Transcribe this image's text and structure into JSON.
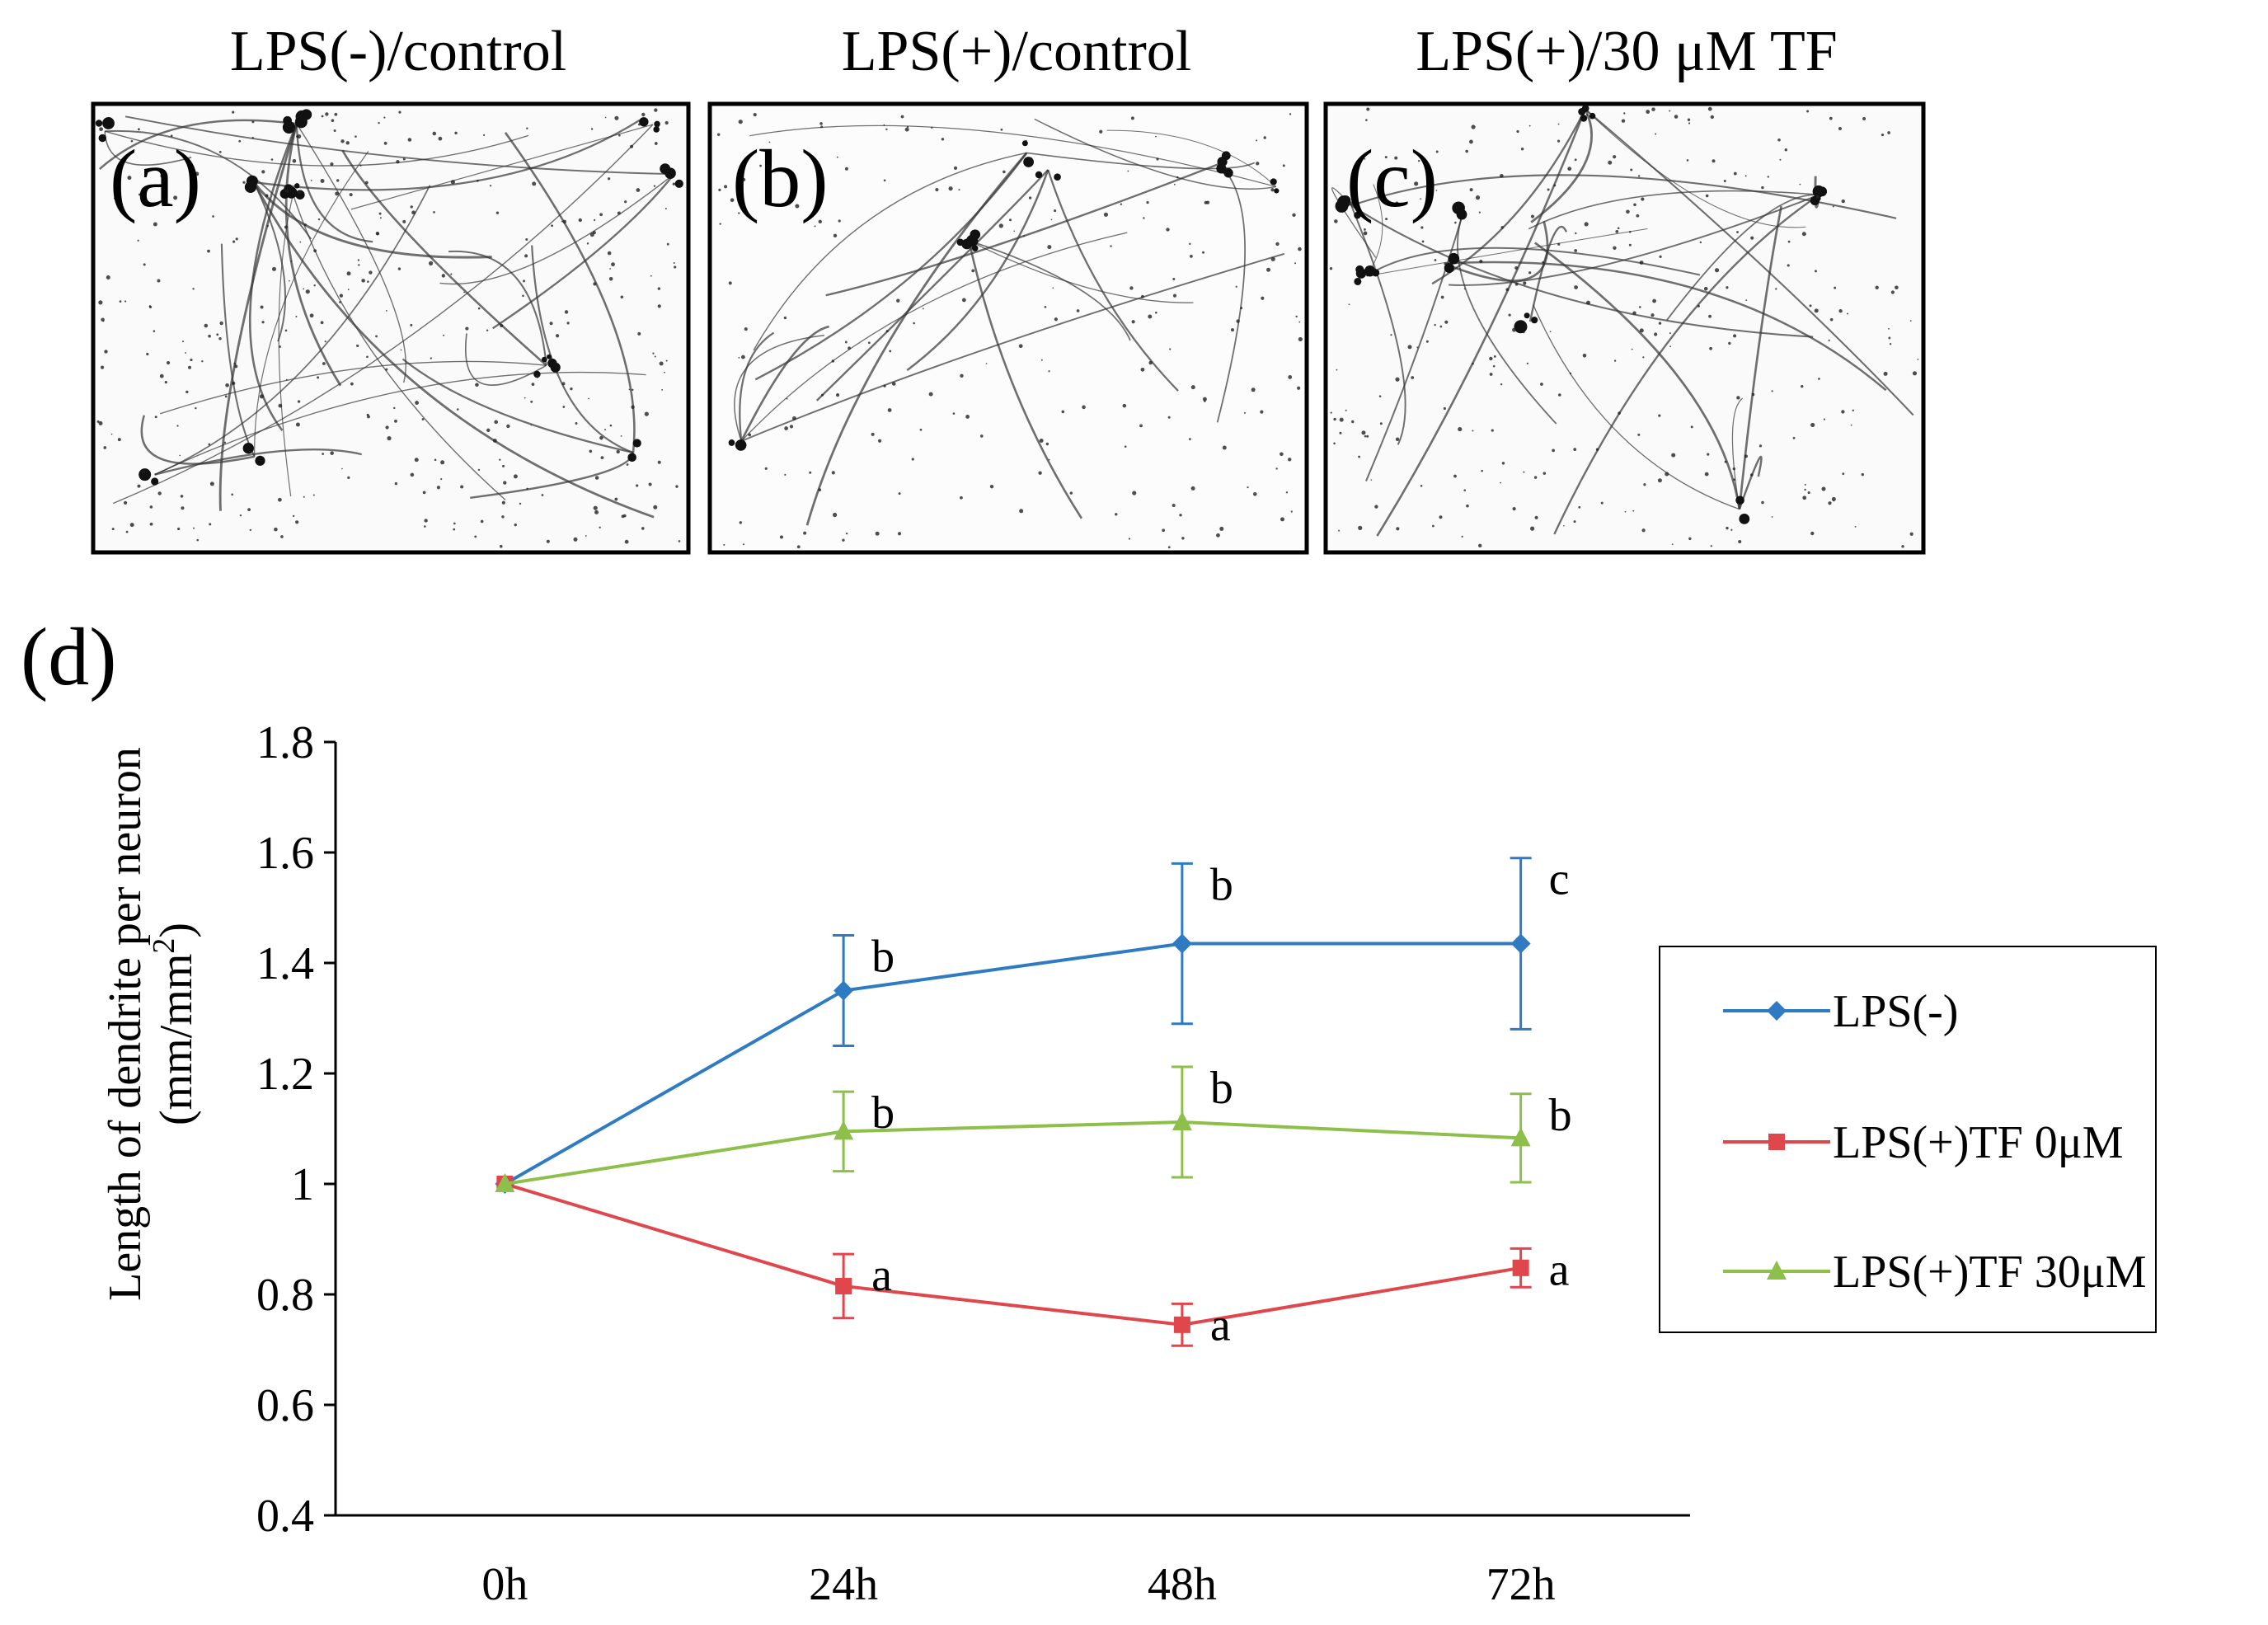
{
  "micrographs": [
    {
      "title": "LPS(-)/control",
      "letter": "(a)"
    },
    {
      "title": "LPS(+)/control",
      "letter": "(b)"
    },
    {
      "title": "LPS(+)/30 μM TF",
      "letter": "(c)"
    }
  ],
  "chart_data": {
    "panel_label": "(d)",
    "type": "line",
    "categories": [
      "0h",
      "24h",
      "48h",
      "72h"
    ],
    "title": "",
    "xlabel": "",
    "ylabel": "Length of dendrite per neuron",
    "ylabel_unit": "(mm/mm",
    "ylabel_unit_sup": "2",
    "ylabel_unit_end": ")",
    "ylim": [
      0.4,
      1.8
    ],
    "y_ticks": [
      "0.4",
      "0.6",
      "0.8",
      "1",
      "1.2",
      "1.4",
      "1.6",
      "1.8"
    ],
    "grid": false,
    "legend_position": "right",
    "series": [
      {
        "name": "LPS(-)",
        "color": "#2E7BC4",
        "marker": "diamond",
        "values": [
          1.0,
          1.35,
          1.435,
          1.435
        ],
        "errors": [
          0.0,
          0.1,
          0.145,
          0.155
        ],
        "labels": [
          "",
          "b",
          "b",
          "c"
        ]
      },
      {
        "name": "LPS(+)TF 0μM",
        "color": "#E0474C",
        "marker": "square",
        "values": [
          1.0,
          0.815,
          0.745,
          0.848
        ],
        "errors": [
          0.0,
          0.058,
          0.038,
          0.035
        ],
        "labels": [
          "",
          "a",
          "a",
          "a"
        ]
      },
      {
        "name": "LPS(+)TF 30μM",
        "color": "#8DC04A",
        "marker": "triangle",
        "values": [
          1.0,
          1.095,
          1.112,
          1.083
        ],
        "errors": [
          0.0,
          0.072,
          0.1,
          0.08
        ],
        "labels": [
          "",
          "b",
          "b",
          "b"
        ]
      }
    ]
  }
}
